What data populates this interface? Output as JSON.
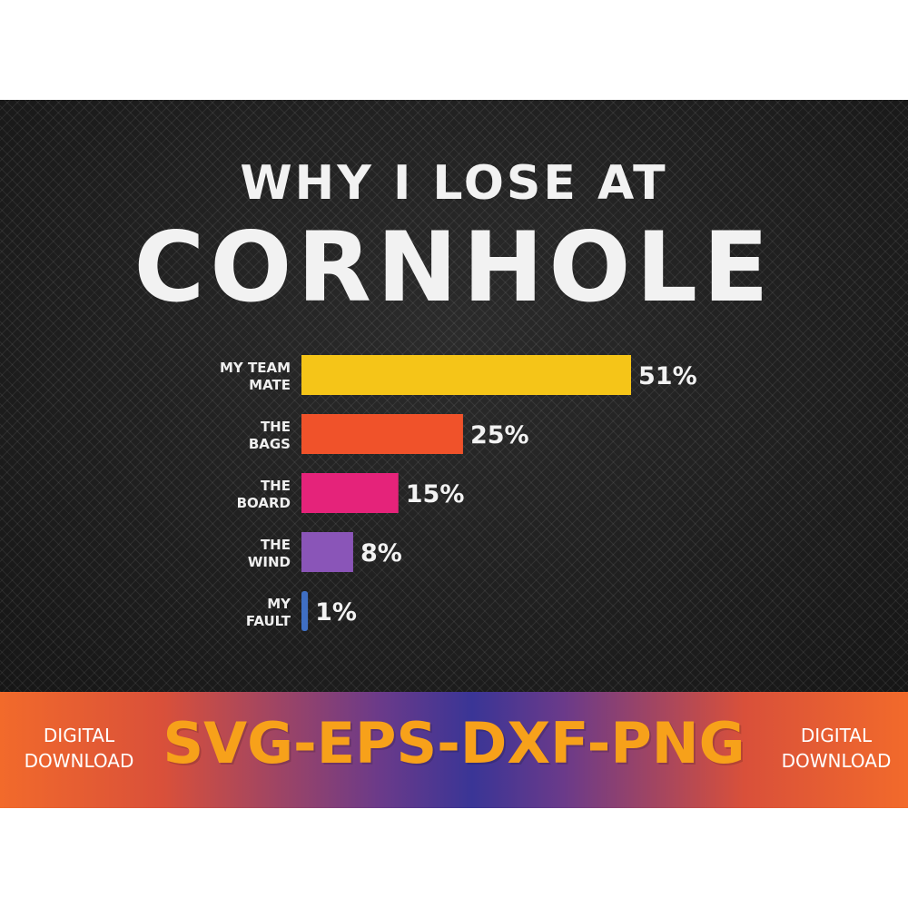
{
  "chart_data": {
    "type": "bar",
    "orientation": "horizontal",
    "title": "WHY I LOSE AT",
    "subtitle": "CORNHOLE",
    "categories": [
      {
        "line1": "MY TEAM",
        "line2": "MATE"
      },
      {
        "line1": "THE",
        "line2": "BAGS"
      },
      {
        "line1": "THE",
        "line2": "BOARD"
      },
      {
        "line1": "THE",
        "line2": "WIND"
      },
      {
        "line1": "MY",
        "line2": "FAULT"
      }
    ],
    "values": [
      51,
      25,
      15,
      8,
      1
    ],
    "value_labels": [
      "51%",
      "25%",
      "15%",
      "8%",
      "1%"
    ],
    "colors": [
      "#f5c518",
      "#f0522a",
      "#e5237a",
      "#8a55b8",
      "#3f6fc4"
    ],
    "xlim": [
      0,
      51
    ],
    "grid": false
  },
  "banner": {
    "left_line1": "DIGITAL",
    "left_line2": "DOWNLOAD",
    "formats": "SVG-EPS-DXF-PNG",
    "right_line1": "DIGITAL",
    "right_line2": "DOWNLOAD"
  }
}
